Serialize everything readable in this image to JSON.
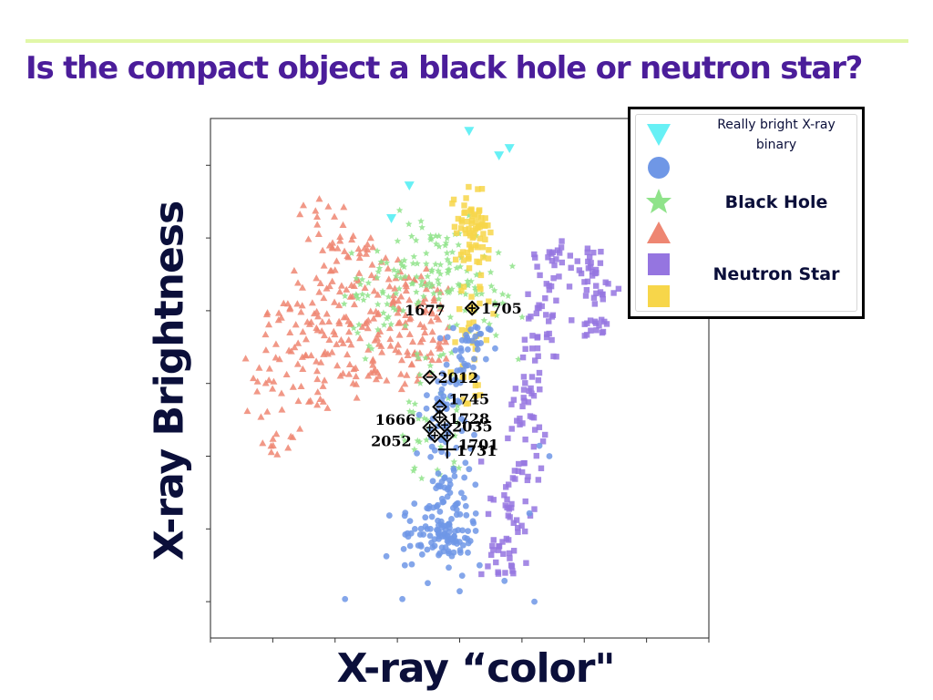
{
  "slide": {
    "title": "Is the compact object a black hole or neutron star?",
    "accent_color": "#e1f7a8",
    "title_color": "#4b1d9a"
  },
  "chart_data": {
    "type": "scatter",
    "title": "",
    "xlabel": "X-ray “color\"",
    "ylabel": "X-ray Brightness",
    "y_scale": "log",
    "tick_labels_shown": false,
    "legend_position": "top-right",
    "legend": [
      {
        "symbol": "triangle-down",
        "color": "#67f0f5",
        "label": "Really bright X-ray binary"
      },
      {
        "symbol": "circle",
        "color": "#6f97e6",
        "label": ""
      },
      {
        "symbol": "star",
        "color": "#8fe38a",
        "label": "Black Hole"
      },
      {
        "symbol": "triangle-up",
        "color": "#ee8672",
        "label": ""
      },
      {
        "symbol": "square",
        "color": "#9575e0",
        "label": "Neutron Star"
      },
      {
        "symbol": "square",
        "color": "#f7d64a",
        "label": ""
      }
    ],
    "highlighted_sources": [
      {
        "label": "1677",
        "x": 0.525,
        "y": 0.635,
        "marker": "diamond-plus"
      },
      {
        "label": "1705",
        "x": 0.525,
        "y": 0.635,
        "marker": "diamond-plus"
      },
      {
        "label": "2012",
        "x": 0.44,
        "y": 0.502,
        "marker": "diamond-minus"
      },
      {
        "label": "1745",
        "x": 0.46,
        "y": 0.445,
        "marker": "diamond-minus"
      },
      {
        "label": "1728",
        "x": 0.46,
        "y": 0.425,
        "marker": "diamond-plus"
      },
      {
        "label": "1666",
        "x": 0.44,
        "y": 0.405,
        "marker": "diamond-plus"
      },
      {
        "label": "2035",
        "x": 0.47,
        "y": 0.41,
        "marker": "diamond-plus"
      },
      {
        "label": "2052",
        "x": 0.45,
        "y": 0.39,
        "marker": "diamond-plus"
      },
      {
        "label": "1701",
        "x": 0.475,
        "y": 0.39,
        "marker": "diamond-plus"
      },
      {
        "label": "1731",
        "x": 0.475,
        "y": 0.363,
        "marker": "cross"
      }
    ],
    "series": [
      {
        "population": "ulx",
        "color": "#67f0f5",
        "marker": "triangle-down",
        "points": [
          [
            0.519,
            0.976
          ],
          [
            0.579,
            0.929
          ],
          [
            0.6,
            0.943
          ],
          [
            0.399,
            0.871
          ],
          [
            0.363,
            0.808
          ]
        ]
      },
      {
        "population": "blue",
        "color": "#6f97e6",
        "marker": "circle",
        "n": 230,
        "center": [
          0.475,
          0.25
        ],
        "spread": [
          0.045,
          0.11
        ],
        "extent_y": [
          0.08,
          0.62
        ],
        "outliers": [
          [
            0.27,
            0.075
          ],
          [
            0.385,
            0.075
          ],
          [
            0.5,
            0.09
          ],
          [
            0.505,
            0.12
          ],
          [
            0.54,
            0.14
          ],
          [
            0.59,
            0.11
          ],
          [
            0.65,
            0.07
          ],
          [
            0.39,
            0.14
          ],
          [
            0.66,
            0.37
          ],
          [
            0.64,
            0.24
          ],
          [
            0.68,
            0.35
          ]
        ]
      },
      {
        "population": "black-hole",
        "color": "#8fe38a",
        "marker": "star",
        "n": 200,
        "center": [
          0.43,
          0.72
        ],
        "spread": [
          0.1,
          0.05
        ]
      },
      {
        "population": "red",
        "color": "#ee8672",
        "marker": "triangle-up",
        "n": 320,
        "center": [
          0.25,
          0.59
        ],
        "spread": [
          0.1,
          0.08
        ]
      },
      {
        "population": "purple",
        "color": "#9575e0",
        "marker": "square",
        "n": 200,
        "center": [
          0.7,
          0.59
        ],
        "spread": [
          0.03,
          0.14
        ]
      },
      {
        "population": "yellow",
        "color": "#f7d64a",
        "marker": "square",
        "n": 110,
        "center": [
          0.53,
          0.78
        ],
        "spread": [
          0.03,
          0.04
        ]
      }
    ]
  }
}
